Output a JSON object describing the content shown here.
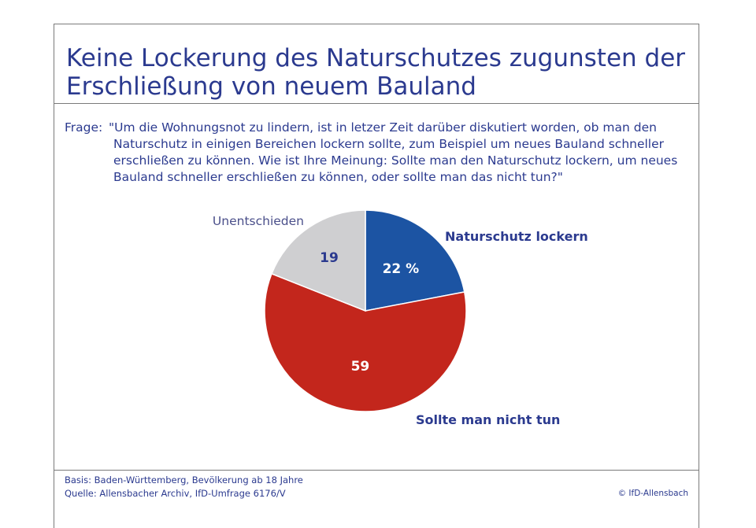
{
  "title_line1": "Keine Lockerung des Naturschutzes zugunsten der",
  "title_line2": "Erschließung von neuem Bauland",
  "question_label": "Frage:",
  "question_text": "\"Um die Wohnungsnot zu lindern, ist in letzer Zeit darüber diskutiert worden, ob man den Naturschutz in einigen Bereichen lockern sollte, zum Beispiel um neues Bauland schneller erschließen zu können. Wie ist Ihre Meinung: Sollte man den Naturschutz lockern, um neues Bauland schneller erschließen zu können, oder sollte man das nicht tun?\"",
  "chart_data": {
    "type": "pie",
    "title": "Keine Lockerung des Naturschutzes zugunsten der Erschließung von neuem Bauland",
    "unit": "%",
    "start": "12 o'clock",
    "direction": "clockwise",
    "slices": [
      {
        "label": "Naturschutz lockern",
        "value": 22,
        "value_label": "22 %",
        "color": "#1c54a3",
        "value_text_color": "#ffffff",
        "label_color": "#2b3a8f"
      },
      {
        "label": "Sollte man nicht tun",
        "value": 59,
        "value_label": "59",
        "color": "#c3261c",
        "value_text_color": "#ffffff",
        "label_color": "#2b3a8f"
      },
      {
        "label": "Unentschieden",
        "value": 19,
        "value_label": "19",
        "color": "#cfcfd1",
        "value_text_color": "#2b3a8f",
        "label_color": "#4a4f8a"
      }
    ]
  },
  "footer": {
    "basis": "Basis: Baden-Württemberg, Bevölkerung ab 18 Jahre",
    "quelle": "Quelle: Allensbacher Archiv, IfD-Umfrage 6176/V",
    "copyright": "© IfD-Allensbach"
  }
}
